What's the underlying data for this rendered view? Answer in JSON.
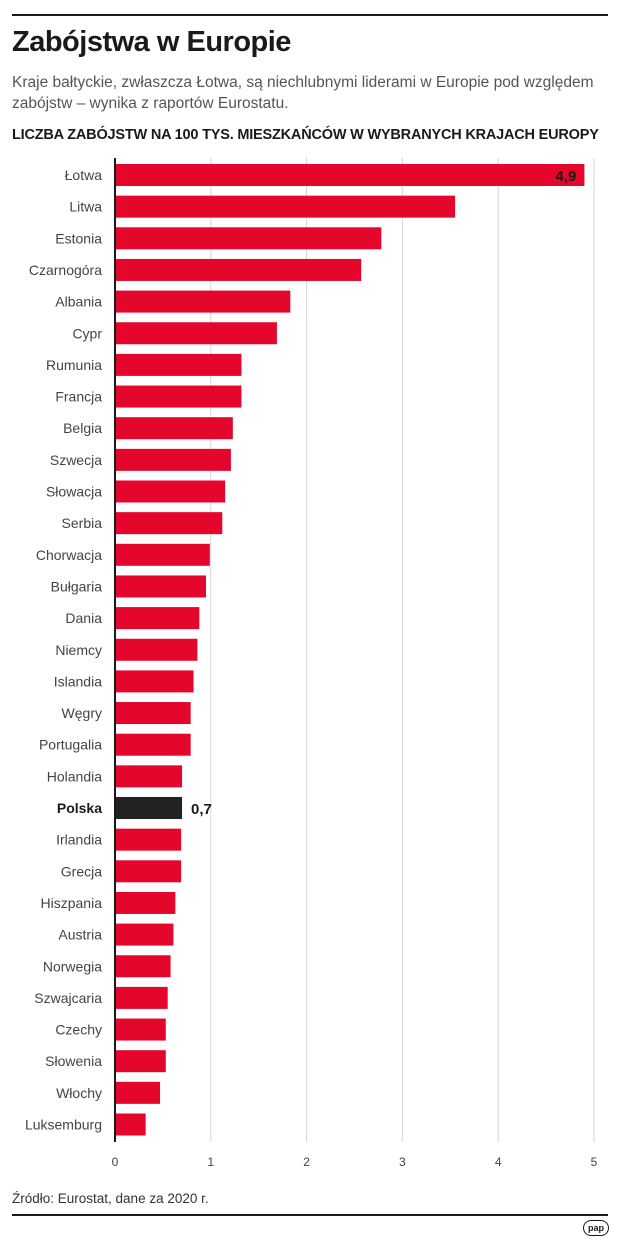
{
  "header": {
    "title": "Zabójstwa w Europie",
    "subtitle": "Kraje bałtyckie, zwłaszcza Łotwa, są niechlubnymi liderami w Europie pod względem zabójstw – wynika z raportów Eurostatu."
  },
  "footer": {
    "source": "Źródło: Eurostat, dane za 2020 r.",
    "logo": "pap"
  },
  "colors": {
    "bar": "#e5062c",
    "highlight": "#222222",
    "grid": "#d6d6d6",
    "axis": "#1a1a1a",
    "label": "#444444"
  },
  "chart_data": {
    "type": "bar",
    "orientation": "horizontal",
    "title": "LICZBA ZABÓJSTW NA 100 TYS. MIESZKAŃCÓW W WYBRANYCH KRAJACH EUROPY",
    "xlabel": "",
    "ylabel": "",
    "xlim": [
      0,
      5
    ],
    "xticks": [
      0,
      1,
      2,
      3,
      4,
      5
    ],
    "grid": true,
    "categories": [
      "Łotwa",
      "Litwa",
      "Estonia",
      "Czarnogóra",
      "Albania",
      "Cypr",
      "Rumunia",
      "Francja",
      "Belgia",
      "Szwecja",
      "Słowacja",
      "Serbia",
      "Chorwacja",
      "Bułgaria",
      "Dania",
      "Niemcy",
      "Islandia",
      "Węgry",
      "Portugalia",
      "Holandia",
      "Polska",
      "Irlandia",
      "Grecja",
      "Hiszpania",
      "Austria",
      "Norwegia",
      "Szwajcaria",
      "Czechy",
      "Słowenia",
      "Włochy",
      "Luksemburg"
    ],
    "values": [
      4.9,
      3.55,
      2.78,
      2.57,
      1.83,
      1.69,
      1.32,
      1.32,
      1.23,
      1.21,
      1.15,
      1.12,
      0.99,
      0.95,
      0.88,
      0.86,
      0.82,
      0.79,
      0.79,
      0.7,
      0.7,
      0.69,
      0.69,
      0.63,
      0.61,
      0.58,
      0.55,
      0.53,
      0.53,
      0.47,
      0.32
    ],
    "highlight": "Polska",
    "data_labels": [
      {
        "category": "Łotwa",
        "text": "4,9",
        "position": "inside-end"
      },
      {
        "category": "Polska",
        "text": "0,7",
        "position": "outside-end"
      }
    ]
  }
}
